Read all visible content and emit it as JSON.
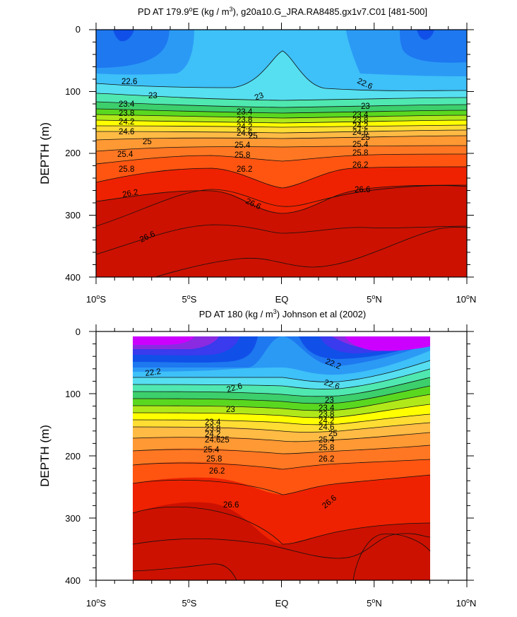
{
  "chart_data": [
    {
      "type": "contour",
      "title_prefix": "PD AT 179.9",
      "title_sup_o": "o",
      "title_mid": "E (kg / m",
      "title_sup_3": "3",
      "title_suffix": "), g20a10.G_JRA.RA8485.gx1v7.C01 [481-500]",
      "ylabel": "DEPTH (m)",
      "xlim": [
        -10,
        10
      ],
      "ylim": [
        0,
        400
      ],
      "y_ticks": [
        "0",
        "100",
        "200",
        "300",
        "400"
      ],
      "x_tick_labels": [
        {
          "num": "10",
          "sup": "o",
          "hem": "S"
        },
        {
          "num": "5",
          "sup": "o",
          "hem": "S"
        },
        {
          "num": "EQ",
          "sup": "",
          "hem": ""
        },
        {
          "num": "5",
          "sup": "o",
          "hem": "N"
        },
        {
          "num": "10",
          "sup": "o",
          "hem": "N"
        }
      ],
      "contour_labels": [
        "22.6",
        "23",
        "23",
        "22.6",
        "23.4",
        "23.8",
        "24.2",
        "24.6",
        "25",
        "25.4",
        "25.8",
        "26.2",
        "26.6",
        "23.4",
        "23.8",
        "24.2",
        "24.6",
        "25",
        "25.4",
        "25.8",
        "26.2",
        "26.6",
        "23",
        "23.4",
        "23.8",
        "24.2",
        "24.6",
        "25",
        "25.4",
        "25.8",
        "26.2",
        "26.6",
        "26.6"
      ]
    },
    {
      "type": "contour",
      "title_prefix": "PD AT 180 (kg / m",
      "title_sup_3": "3",
      "title_suffix": ") Johnson et al (2002)",
      "ylabel": "DEPTH (m)",
      "xlim": [
        -10,
        10
      ],
      "ylim": [
        0,
        400
      ],
      "data_xrange": [
        -8,
        8
      ],
      "y_ticks": [
        "0",
        "100",
        "200",
        "300",
        "400"
      ],
      "x_tick_labels": [
        {
          "num": "10",
          "sup": "o",
          "hem": "S"
        },
        {
          "num": "5",
          "sup": "o",
          "hem": "S"
        },
        {
          "num": "EQ",
          "sup": "",
          "hem": ""
        },
        {
          "num": "5",
          "sup": "o",
          "hem": "N"
        },
        {
          "num": "10",
          "sup": "o",
          "hem": "N"
        }
      ],
      "contour_labels": [
        "22.2",
        "22.6",
        "23",
        "23.4",
        "23.8",
        "24.2",
        "24.6",
        "25",
        "25.4",
        "25.8",
        "26.2",
        "26.6",
        "22.2",
        "22.6",
        "23",
        "23.4",
        "23.8",
        "24.2",
        "24.6",
        "25",
        "25.4",
        "25.8",
        "26.2",
        "26.6"
      ]
    }
  ],
  "palette": [
    "#cc00ff",
    "#8a2be2",
    "#3a3aee",
    "#1050e8",
    "#1e78f0",
    "#2b9af5",
    "#3ec0f8",
    "#56dff0",
    "#4fe8b0",
    "#3ccf6c",
    "#5ad820",
    "#b0e81a",
    "#ffff00",
    "#ffdd33",
    "#ffbb44",
    "#ff9933",
    "#ff7722",
    "#ff5511",
    "#ee2200",
    "#cc1100"
  ]
}
